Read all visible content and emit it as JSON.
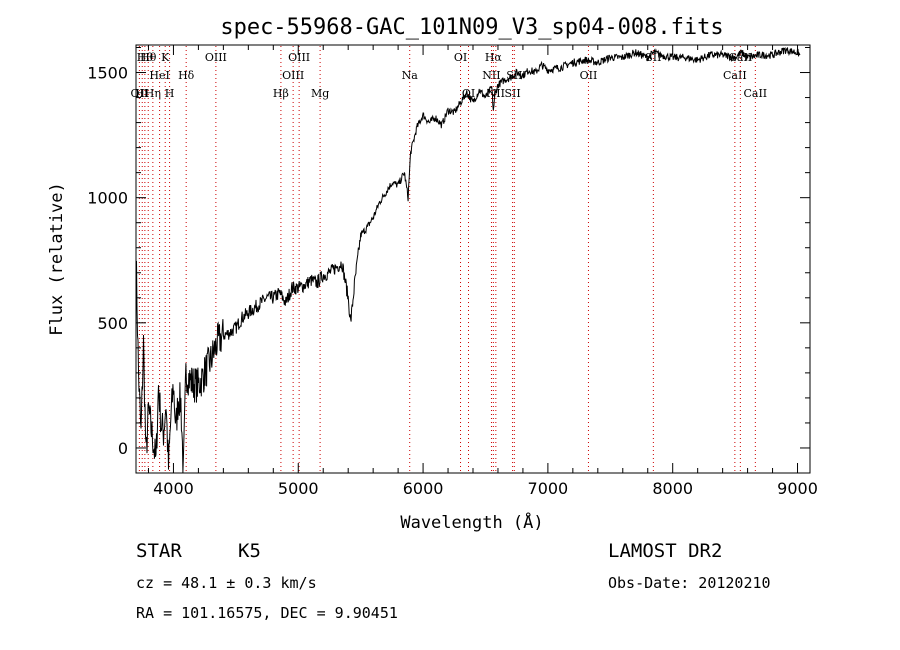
{
  "chart_data": {
    "type": "line",
    "title": "spec-55968-GAC_101N09_V3_sp04-008.fits",
    "xlabel": "Wavelength (Å)",
    "ylabel": "Flux (relative)",
    "xlim": [
      3700,
      9100
    ],
    "ylim": [
      -100,
      1610
    ],
    "x_ticks": [
      4000,
      5000,
      6000,
      7000,
      8000,
      9000
    ],
    "y_ticks": [
      0,
      500,
      1000,
      1500
    ],
    "grid": false,
    "line_color": "#000000",
    "marker_line_color": "#cc0000",
    "series": [
      {
        "x": [
          3700,
          3720,
          3740,
          3760,
          3780,
          3800,
          3820,
          3840,
          3860,
          3880,
          3900,
          3920,
          3940,
          3960,
          3980,
          4000,
          4020,
          4040,
          4060,
          4080,
          4100,
          4150,
          4200,
          4250,
          4300,
          4350,
          4400,
          4450,
          4500,
          4550,
          4600,
          4650,
          4700,
          4750,
          4800,
          4850,
          4900,
          4950,
          5000,
          5050,
          5100,
          5150,
          5200,
          5250,
          5300,
          5350,
          5400,
          5420,
          5450,
          5500,
          5550,
          5600,
          5650,
          5700,
          5750,
          5800,
          5850,
          5880,
          5900,
          5920,
          5950,
          6000,
          6050,
          6100,
          6150,
          6200,
          6250,
          6300,
          6350,
          6400,
          6450,
          6500,
          6550,
          6563,
          6580,
          6600,
          6650,
          6700,
          6750,
          6800,
          6850,
          6900,
          6950,
          7000,
          7100,
          7200,
          7300,
          7400,
          7500,
          7600,
          7700,
          7800,
          7850,
          7900,
          8000,
          8100,
          8200,
          8300,
          8400,
          8500,
          8550,
          8600,
          8700,
          8800,
          8900,
          9000,
          9020
        ],
        "y": [
          780,
          300,
          50,
          420,
          -40,
          150,
          80,
          20,
          -60,
          250,
          100,
          60,
          180,
          -80,
          120,
          250,
          80,
          200,
          180,
          -100,
          300,
          260,
          250,
          300,
          350,
          420,
          450,
          460,
          480,
          520,
          540,
          560,
          580,
          600,
          600,
          620,
          580,
          640,
          640,
          650,
          670,
          660,
          690,
          700,
          720,
          740,
          600,
          500,
          650,
          850,
          880,
          920,
          980,
          1020,
          1060,
          1050,
          1100,
          1000,
          1180,
          1220,
          1280,
          1330,
          1300,
          1320,
          1290,
          1350,
          1340,
          1380,
          1420,
          1380,
          1430,
          1400,
          1440,
          1350,
          1420,
          1450,
          1470,
          1480,
          1500,
          1490,
          1510,
          1500,
          1530,
          1510,
          1520,
          1540,
          1550,
          1540,
          1560,
          1560,
          1580,
          1560,
          1580,
          1570,
          1560,
          1560,
          1550,
          1570,
          1570,
          1560,
          1580,
          1560,
          1570,
          1570,
          1590,
          1580,
          1570
        ]
      }
    ],
    "line_markers": [
      {
        "wl": 3727,
        "label": "OII",
        "row": 3
      },
      {
        "wl": 3750,
        "label": "Hι",
        "row": 3
      },
      {
        "wl": 3771,
        "label": "Hθ",
        "row": 1
      },
      {
        "wl": 3798,
        "label": "Hθ",
        "row": 1
      },
      {
        "wl": 3835,
        "label": "Hη",
        "row": 3
      },
      {
        "wl": 3889,
        "label": "HeI",
        "row": 2
      },
      {
        "wl": 3934,
        "label": "K",
        "row": 1
      },
      {
        "wl": 3969,
        "label": "H",
        "row": 3
      },
      {
        "wl": 4102,
        "label": "Hδ",
        "row": 2
      },
      {
        "wl": 4340,
        "label": "OIII",
        "row": 1
      },
      {
        "wl": 4861,
        "label": "Hβ",
        "row": 3
      },
      {
        "wl": 4959,
        "label": "OIII",
        "row": 2
      },
      {
        "wl": 5007,
        "label": "OIII",
        "row": 1
      },
      {
        "wl": 5175,
        "label": "Mg",
        "row": 3
      },
      {
        "wl": 5893,
        "label": "Na",
        "row": 2
      },
      {
        "wl": 6300,
        "label": "OI",
        "row": 1
      },
      {
        "wl": 6364,
        "label": "OI",
        "row": 3
      },
      {
        "wl": 6548,
        "label": "NII",
        "row": 2
      },
      {
        "wl": 6563,
        "label": "Hα",
        "row": 1
      },
      {
        "wl": 6583,
        "label": "NII",
        "row": 3
      },
      {
        "wl": 6717,
        "label": "SII",
        "row": 3
      },
      {
        "wl": 6731,
        "label": "SII",
        "row": 2
      },
      {
        "wl": 7325,
        "label": "OII",
        "row": 2
      },
      {
        "wl": 7845,
        "label": "SII",
        "row": 1
      },
      {
        "wl": 8498,
        "label": "CaII",
        "row": 2
      },
      {
        "wl": 8542,
        "label": "CaII",
        "row": 1
      },
      {
        "wl": 8662,
        "label": "CaII",
        "row": 3
      }
    ]
  },
  "info": {
    "class": "STAR",
    "subclass": "K5",
    "survey": "LAMOST DR2",
    "redshift": "cz = 48.1 ± 0.3 km/s",
    "obs_date": "Obs-Date: 20120210",
    "coords": "RA = 101.16575, DEC =   9.90451"
  }
}
